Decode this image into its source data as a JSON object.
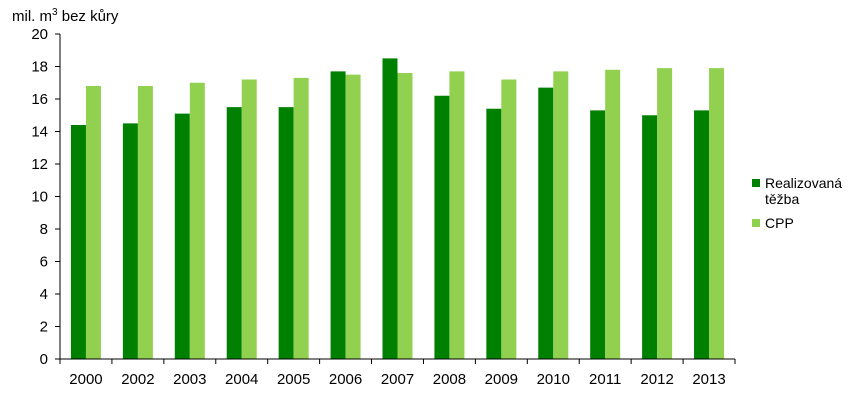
{
  "chart_data": {
    "type": "bar",
    "ylabel": {
      "prefix": "mil. m",
      "sup": "3",
      "suffix": " bez kůry"
    },
    "ylim": [
      0,
      20
    ],
    "yticks": [
      0,
      2,
      4,
      6,
      8,
      10,
      12,
      14,
      16,
      18,
      20
    ],
    "grid": false,
    "legend_position": "right",
    "categories": [
      "2000",
      "2002",
      "2003",
      "2004",
      "2005",
      "2006",
      "2007",
      "2008",
      "2009",
      "2010",
      "2011",
      "2012",
      "2013"
    ],
    "series": [
      {
        "name": "Realizovaná těžba",
        "name_lines": [
          "Realizovaná",
          "těžba"
        ],
        "color": "#008000",
        "values": [
          14.4,
          14.5,
          15.1,
          15.5,
          15.5,
          17.7,
          18.5,
          16.2,
          15.4,
          16.7,
          15.3,
          15.0,
          15.3
        ]
      },
      {
        "name": "CPP",
        "name_lines": [
          "CPP"
        ],
        "color": "#92d050",
        "values": [
          16.8,
          16.8,
          17.0,
          17.2,
          17.3,
          17.5,
          17.6,
          17.7,
          17.2,
          17.7,
          17.8,
          17.9,
          17.9
        ]
      }
    ]
  }
}
